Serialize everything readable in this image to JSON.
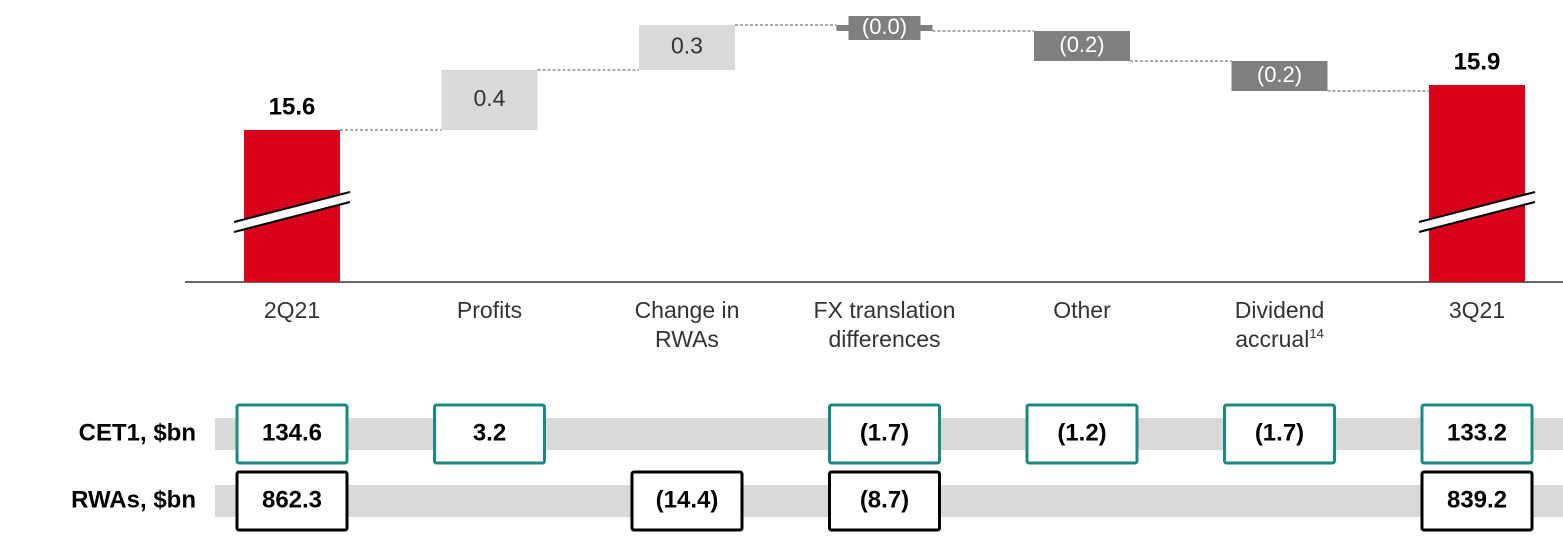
{
  "chart_data": {
    "type": "waterfall",
    "categories": [
      "2Q21",
      "Profits",
      "Change in RWAs",
      "FX translation differences",
      "Other",
      "Dividend accrual",
      "3Q21"
    ],
    "category_notes": [
      null,
      null,
      null,
      null,
      null,
      "14",
      null
    ],
    "values": [
      15.6,
      0.4,
      0.3,
      -0.04,
      -0.2,
      -0.2,
      15.9
    ],
    "value_labels": [
      "15.6",
      "0.4",
      "0.3",
      "(0.0)",
      "(0.2)",
      "(0.2)",
      "15.9"
    ],
    "totals": [
      true,
      false,
      false,
      false,
      false,
      false,
      true
    ],
    "colors": {
      "total": "#d9001b",
      "increase": "#d9d9d9",
      "decrease": "#7f7f7f"
    },
    "table": {
      "rows": [
        {
          "label": "CET1, $bn",
          "color": "#1a8a80",
          "cells": [
            "134.6",
            "3.2",
            null,
            "(1.7)",
            "(1.2)",
            "(1.7)",
            "133.2"
          ]
        },
        {
          "label": "RWAs, $bn",
          "color": "#000000",
          "cells": [
            "862.3",
            null,
            "(14.4)",
            "(8.7)",
            null,
            null,
            "839.2"
          ]
        }
      ]
    }
  }
}
